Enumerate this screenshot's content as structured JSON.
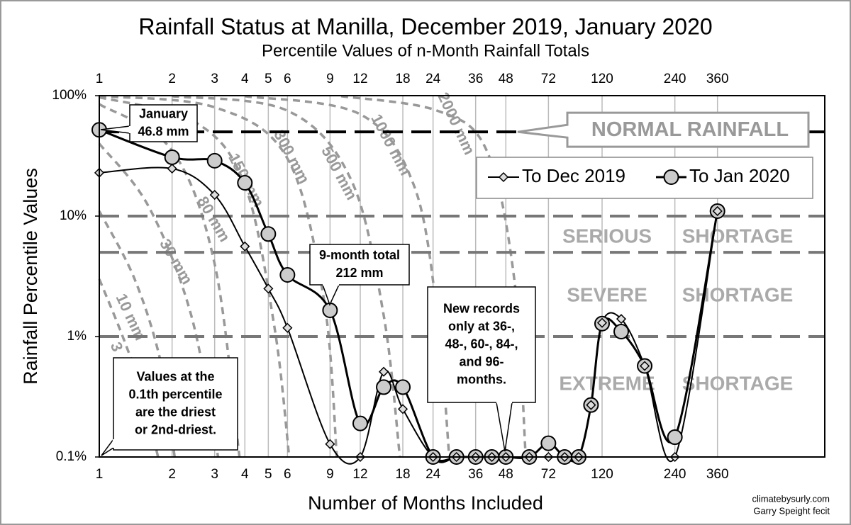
{
  "chart_data": {
    "type": "line",
    "title": "Rainfall Status at Manilla, December 2019, January 2020",
    "subtitle": "Percentile Values of n-Month Rainfall Totals",
    "x_label": "Number of Months Included",
    "y_label": "Rainfall Percentile Values",
    "log_x": true,
    "log_y": true,
    "xlim": [
      1,
      1000
    ],
    "ylim": [
      0.1,
      100
    ],
    "xticks": [
      1,
      2,
      3,
      4,
      5,
      6,
      9,
      12,
      18,
      24,
      36,
      48,
      72,
      120,
      240,
      360
    ],
    "yticks": [
      {
        "value": 0.1,
        "label": "0.1%"
      },
      {
        "value": 1,
        "label": "1%"
      },
      {
        "value": 10,
        "label": "10%"
      },
      {
        "value": 100,
        "label": "100%"
      }
    ],
    "x": [
      1,
      2,
      3,
      4,
      5,
      6,
      9,
      12,
      15,
      18,
      24,
      30,
      36,
      42,
      48,
      60,
      72,
      84,
      96,
      108,
      120,
      144,
      180,
      240,
      360
    ],
    "series": [
      {
        "name": "To Dec 2019",
        "color": "#000000",
        "marker": "diamond",
        "values": [
          22.9,
          24.8,
          15,
          5.6,
          2.5,
          1.18,
          0.128,
          0.1,
          0.51,
          0.25,
          0.1,
          0.1,
          0.1,
          0.1,
          0.1,
          0.1,
          0.1,
          0.1,
          0.1,
          0.27,
          1.3,
          1.4,
          0.57,
          0.1,
          11
        ]
      },
      {
        "name": "To Jan 2020",
        "color": "#000000",
        "marker": "circle",
        "values": [
          52,
          30.8,
          28.8,
          18.9,
          7.1,
          3.25,
          1.65,
          0.19,
          0.38,
          0.38,
          0.1,
          0.1,
          0.1,
          0.1,
          0.1,
          0.1,
          0.13,
          0.1,
          0.1,
          0.27,
          1.28,
          1.1,
          0.57,
          0.146,
          11
        ]
      }
    ],
    "reference_lines": [
      {
        "value": 50,
        "color": "#000000"
      },
      {
        "value": 10,
        "color": "#777777"
      },
      {
        "value": 5,
        "color": "#777777"
      },
      {
        "value": 1,
        "color": "#777777"
      }
    ],
    "normal_label": "NORMAL RAINFALL",
    "zone_labels": [
      [
        "SERIOUS",
        "SHORTAGE"
      ],
      [
        "SEVERE",
        "SHORTAGE"
      ],
      [
        "EXTREME",
        "SHORTAGE"
      ]
    ],
    "iso_curves": [
      {
        "label": "3",
        "x": [
          1,
          1.25,
          1.5,
          1.75
        ],
        "y": [
          3,
          1,
          0.35,
          0.1
        ]
      },
      {
        "label": "10 mm",
        "x": [
          1,
          1.4,
          1.8,
          2.05
        ],
        "y": [
          11,
          3,
          0.6,
          0.1
        ]
      },
      {
        "label": "30 mm",
        "x": [
          1,
          1.6,
          2.4,
          3.1
        ],
        "y": [
          40,
          12,
          1.5,
          0.1
        ]
      },
      {
        "label": "80 mm",
        "x": [
          1,
          2,
          3,
          3.8
        ],
        "y": [
          85,
          35,
          4,
          0.1
        ]
      },
      {
        "label": "150 mm",
        "x": [
          1,
          2.5,
          4,
          5.3,
          6.1
        ],
        "y": [
          97,
          60,
          18,
          1.2,
          0.1
        ]
      },
      {
        "label": "300 mm",
        "x": [
          1,
          3,
          6,
          8.5,
          9.6
        ],
        "y": [
          99,
          80,
          30,
          2,
          0.1
        ]
      },
      {
        "label": "500 mm",
        "x": [
          2,
          6,
          11,
          15,
          17.5
        ],
        "y": [
          99,
          75,
          20,
          1.5,
          0.1
        ]
      },
      {
        "label": "1000 mm",
        "x": [
          4,
          12,
          20,
          25,
          28
        ],
        "y": [
          99,
          70,
          18,
          1.5,
          0.1
        ]
      },
      {
        "label": "2000 mm",
        "x": [
          10,
          25,
          40,
          52,
          58
        ],
        "y": [
          99,
          75,
          35,
          3,
          0.1
        ]
      }
    ],
    "annotations": [
      [
        "January",
        "46.8 mm"
      ],
      [
        "9-month total",
        "212 mm"
      ],
      [
        "New records",
        "only at 36-,",
        "48-, 60-, 84-,",
        "and 96-",
        "months."
      ],
      [
        "Values at the",
        "0.1th percentile",
        "are the driest",
        "or 2nd-driest."
      ]
    ],
    "credits": [
      "climatebysurly.com",
      "Garry Speight fecit"
    ]
  }
}
